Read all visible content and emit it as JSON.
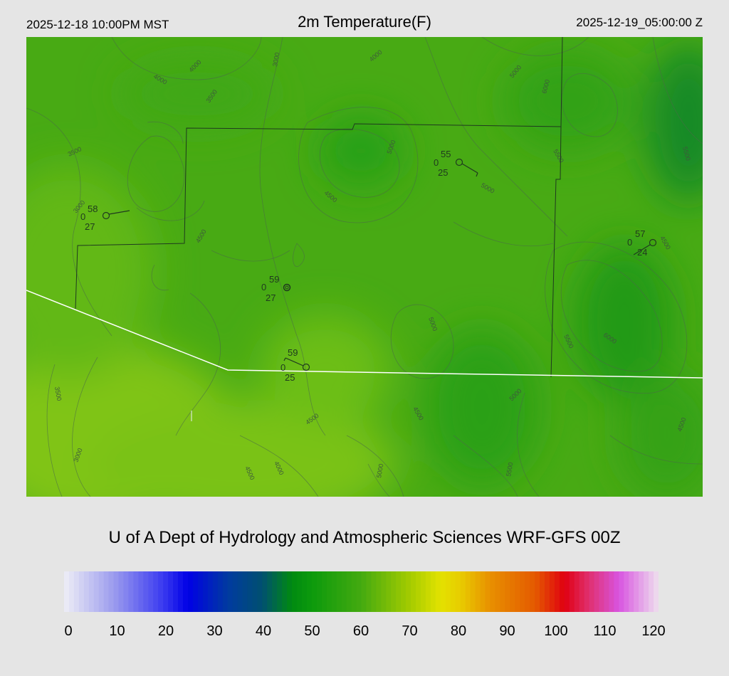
{
  "header": {
    "valid_local": "2025-12-18 10:00PM MST",
    "title": "2m Temperature(F)",
    "valid_utc": "2025-12-19_05:00:00 Z"
  },
  "footer": {
    "credit": "U of A Dept of Hydrology and Atmospheric Sciences WRF-GFS 00Z"
  },
  "colorbar": {
    "ticks": [
      "0",
      "10",
      "20",
      "30",
      "40",
      "50",
      "60",
      "70",
      "80",
      "90",
      "100",
      "110",
      "120"
    ],
    "stops": [
      {
        "v": 0,
        "c": "#eeeef6"
      },
      {
        "v": 10,
        "c": "#9c9cee"
      },
      {
        "v": 20,
        "c": "#3a3af0"
      },
      {
        "v": 25,
        "c": "#0000e6"
      },
      {
        "v": 33,
        "c": "#003aa0"
      },
      {
        "v": 40,
        "c": "#005070"
      },
      {
        "v": 46,
        "c": "#008a10"
      },
      {
        "v": 50,
        "c": "#0c9a0c"
      },
      {
        "v": 60,
        "c": "#44aa10"
      },
      {
        "v": 70,
        "c": "#a6cc00"
      },
      {
        "v": 76,
        "c": "#e3e200"
      },
      {
        "v": 80,
        "c": "#e8cc00"
      },
      {
        "v": 86,
        "c": "#e89000"
      },
      {
        "v": 95,
        "c": "#e45a00"
      },
      {
        "v": 101,
        "c": "#e00010"
      },
      {
        "v": 106,
        "c": "#e03070"
      },
      {
        "v": 112,
        "c": "#d854e0"
      },
      {
        "v": 120,
        "c": "#eee0ee"
      }
    ]
  },
  "stations": [
    {
      "temp": "58",
      "dew": "27",
      "cloud": "0"
    },
    {
      "temp": "55",
      "dew": "25",
      "cloud": "0"
    },
    {
      "temp": "57",
      "dew": "24",
      "cloud": "0"
    },
    {
      "temp": "59",
      "dew": "27",
      "cloud": "0"
    },
    {
      "temp": "59",
      "dew": "25",
      "cloud": "0"
    }
  ],
  "contour_labels": [
    "4000",
    "3000",
    "4000",
    "3500",
    "5000",
    "4000",
    "3500",
    "5000",
    "4500",
    "4500",
    "5000",
    "5500",
    "3000",
    "4500",
    "6000",
    "5500",
    "5000",
    "5500",
    "6000",
    "3500",
    "4500",
    "4500",
    "5000",
    "4000",
    "3000",
    "4500",
    "5000",
    "5500",
    "4500"
  ],
  "colors": {
    "boundary": "#1f3a1f",
    "border": "#ffffff",
    "contour": "#4a6a48",
    "background": "#e5e5e5"
  }
}
